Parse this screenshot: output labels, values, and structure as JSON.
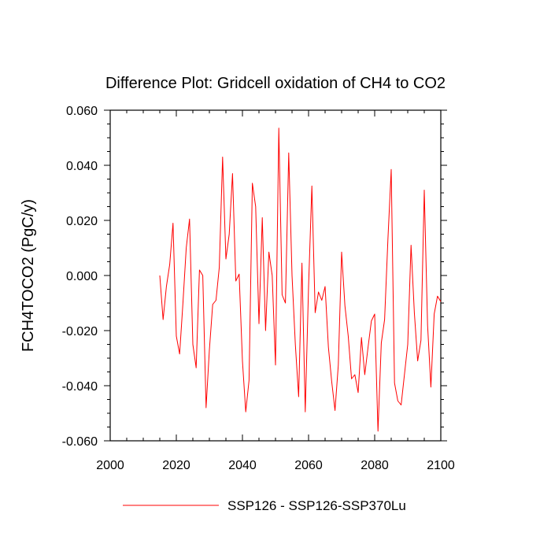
{
  "chart_data": {
    "type": "line",
    "title": "Difference Plot: Gridcell oxidation of CH4 to CO2",
    "xlabel": "",
    "ylabel": "FCH4TOCO2  (PgC/y)",
    "xlim": [
      2000,
      2100
    ],
    "ylim": [
      -0.06,
      0.06
    ],
    "x_ticks": [
      2000,
      2020,
      2040,
      2060,
      2080,
      2100
    ],
    "x_tick_labels": [
      "2000",
      "2020",
      "2040",
      "2060",
      "2080",
      "2100"
    ],
    "y_ticks": [
      -0.06,
      -0.04,
      -0.02,
      0.0,
      0.02,
      0.04,
      0.06
    ],
    "y_tick_labels": [
      "-0.060",
      "-0.040",
      "-0.020",
      "0.000",
      "0.020",
      "0.040",
      "0.060"
    ],
    "grid": false,
    "legend_position": "bottom-center",
    "series": [
      {
        "name": "SSP126 - SSP126-SSP370Lu",
        "color": "#ff0000",
        "x": [
          2015,
          2016,
          2017,
          2018,
          2019,
          2020,
          2021,
          2022,
          2023,
          2024,
          2025,
          2026,
          2027,
          2028,
          2029,
          2030,
          2031,
          2032,
          2033,
          2034,
          2035,
          2036,
          2037,
          2038,
          2039,
          2040,
          2041,
          2042,
          2043,
          2044,
          2045,
          2046,
          2047,
          2048,
          2049,
          2050,
          2051,
          2052,
          2053,
          2054,
          2055,
          2056,
          2057,
          2058,
          2059,
          2060,
          2061,
          2062,
          2063,
          2064,
          2065,
          2066,
          2067,
          2068,
          2069,
          2070,
          2071,
          2072,
          2073,
          2074,
          2075,
          2076,
          2077,
          2078,
          2079,
          2080,
          2081,
          2082,
          2083,
          2084,
          2085,
          2086,
          2087,
          2088,
          2089,
          2090,
          2091,
          2092,
          2093,
          2094,
          2095,
          2096,
          2097,
          2098,
          2099,
          2100
        ],
        "values": [
          0.0,
          -0.016,
          -0.004,
          0.004,
          0.019,
          -0.022,
          -0.0285,
          -0.01,
          0.01,
          0.0205,
          -0.025,
          -0.0335,
          0.002,
          0.0,
          -0.048,
          -0.027,
          -0.0105,
          -0.009,
          0.003,
          0.043,
          0.006,
          0.015,
          0.037,
          -0.002,
          0.0005,
          -0.031,
          -0.0495,
          -0.038,
          0.0335,
          0.025,
          -0.0175,
          0.021,
          -0.02,
          0.0085,
          0.0,
          -0.0325,
          0.0535,
          -0.007,
          -0.01,
          0.0445,
          0.0,
          -0.025,
          -0.044,
          0.0045,
          -0.0495,
          -0.004,
          0.0325,
          -0.0135,
          -0.006,
          -0.009,
          -0.004,
          -0.026,
          -0.0385,
          -0.049,
          -0.0325,
          0.0085,
          -0.011,
          -0.022,
          -0.0375,
          -0.036,
          -0.0425,
          -0.0225,
          -0.036,
          -0.026,
          -0.0165,
          -0.014,
          -0.0565,
          -0.0245,
          -0.016,
          0.013,
          0.0385,
          -0.039,
          -0.0455,
          -0.047,
          -0.036,
          -0.025,
          0.011,
          -0.0135,
          -0.031,
          -0.0235,
          0.031,
          -0.018,
          -0.0405,
          -0.014,
          -0.0075,
          -0.0095
        ]
      }
    ]
  }
}
